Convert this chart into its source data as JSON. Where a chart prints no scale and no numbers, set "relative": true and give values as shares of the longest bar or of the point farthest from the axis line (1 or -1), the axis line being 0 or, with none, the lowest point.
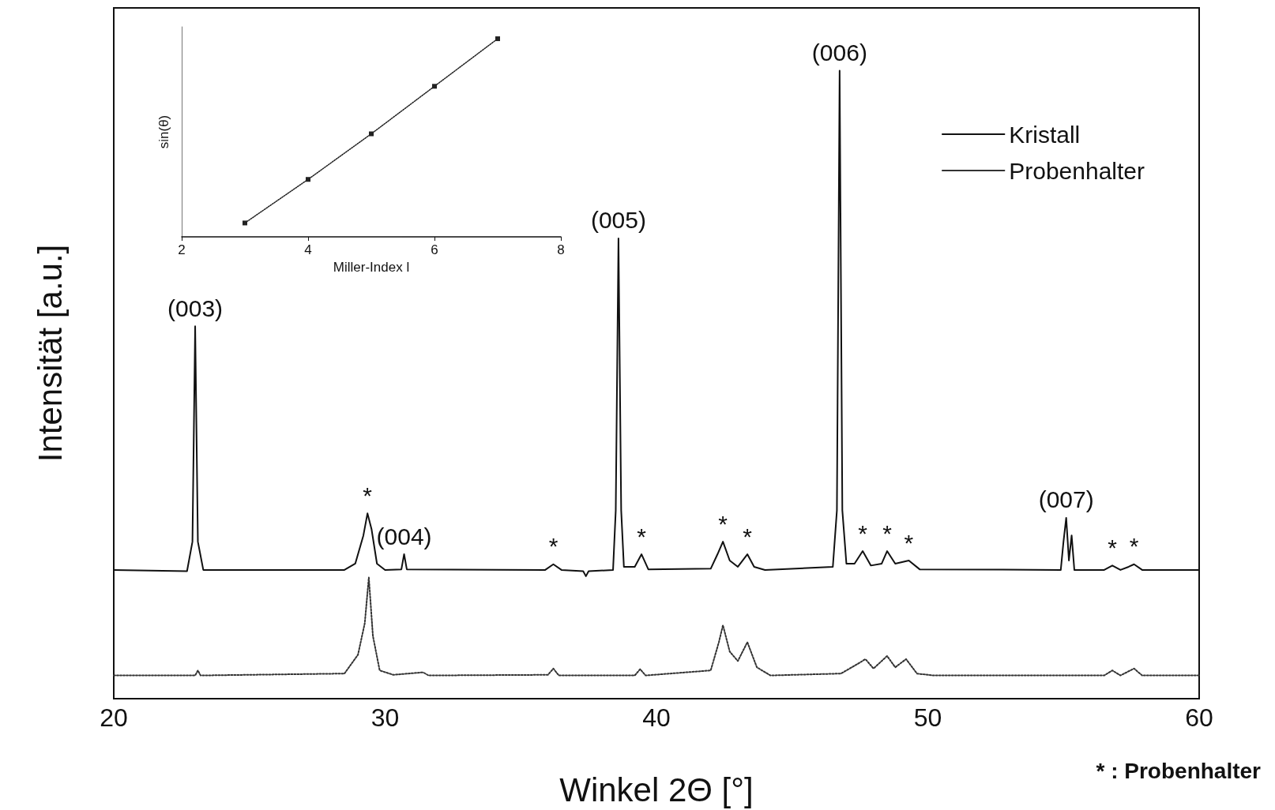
{
  "chart_data": [
    {
      "type": "line",
      "relative": true,
      "xlabel": "Winkel 2Θ [°]",
      "ylabel": "Intensität [a.u.]",
      "xlim": [
        20,
        60
      ],
      "xticks": [
        20,
        30,
        40,
        50,
        60
      ],
      "grid": false,
      "legend": "top right",
      "marker": "none",
      "series": [
        {
          "name": "Kristall",
          "color": "#111111",
          "line_style": "solid",
          "x": [
            20,
            22.7,
            22.9,
            23.0,
            23.1,
            23.3,
            28.5,
            28.9,
            29.2,
            29.35,
            29.5,
            29.7,
            30.0,
            30.6,
            30.7,
            30.8,
            35.9,
            36.2,
            36.5,
            37.3,
            37.4,
            37.5,
            38.4,
            38.5,
            38.6,
            38.7,
            38.8,
            39.2,
            39.45,
            39.7,
            42.0,
            42.25,
            42.45,
            42.7,
            43.0,
            43.35,
            43.6,
            44.0,
            46.5,
            46.65,
            46.75,
            46.85,
            47.0,
            47.3,
            47.6,
            47.9,
            48.3,
            48.5,
            48.8,
            49.3,
            49.7,
            54.9,
            55.0,
            55.1,
            55.2,
            55.3,
            55.4,
            56.5,
            56.8,
            57.1,
            57.4,
            57.6,
            57.9,
            60
          ],
          "values": [
            0.205,
            0.203,
            0.25,
            0.593,
            0.25,
            0.205,
            0.205,
            0.215,
            0.26,
            0.295,
            0.27,
            0.215,
            0.205,
            0.206,
            0.23,
            0.206,
            0.205,
            0.214,
            0.205,
            0.203,
            0.195,
            0.203,
            0.205,
            0.3,
            0.733,
            0.3,
            0.21,
            0.21,
            0.23,
            0.206,
            0.207,
            0.23,
            0.25,
            0.22,
            0.21,
            0.23,
            0.21,
            0.205,
            0.21,
            0.3,
            1,
            0.3,
            0.215,
            0.215,
            0.235,
            0.212,
            0.215,
            0.235,
            0.215,
            0.22,
            0.206,
            0.205,
            0.25,
            0.288,
            0.22,
            0.26,
            0.205,
            0.205,
            0.212,
            0.205,
            0.21,
            0.214,
            0.205,
            0.205
          ]
        },
        {
          "name": "Probenhalter",
          "color": "#333333",
          "line_style": "dotted",
          "x": [
            20,
            23.0,
            23.1,
            23.2,
            28.5,
            29.0,
            29.25,
            29.4,
            29.55,
            29.8,
            30.3,
            31.4,
            31.6,
            36.0,
            36.2,
            36.4,
            39.2,
            39.4,
            39.6,
            42.0,
            42.3,
            42.45,
            42.7,
            43.0,
            43.35,
            43.7,
            44.2,
            46.8,
            47.4,
            47.7,
            48.0,
            48.5,
            48.8,
            49.2,
            49.6,
            50.2,
            56.5,
            56.8,
            57.1,
            57.6,
            57.9,
            60
          ],
          "values": [
            0.037,
            0.037,
            0.045,
            0.037,
            0.04,
            0.07,
            0.12,
            0.193,
            0.1,
            0.045,
            0.038,
            0.042,
            0.037,
            0.038,
            0.048,
            0.037,
            0.037,
            0.047,
            0.037,
            0.045,
            0.09,
            0.117,
            0.075,
            0.06,
            0.09,
            0.05,
            0.037,
            0.04,
            0.055,
            0.063,
            0.048,
            0.068,
            0.05,
            0.063,
            0.04,
            0.037,
            0.037,
            0.045,
            0.037,
            0.048,
            0.037,
            0.037
          ]
        }
      ],
      "annotations": [
        {
          "text": "(003)",
          "x": 23.0,
          "y": 0.593
        },
        {
          "text": "(004)",
          "x": 30.7,
          "y": 0.23
        },
        {
          "text": "(005)",
          "x": 38.6,
          "y": 0.733
        },
        {
          "text": "(006)",
          "x": 46.75,
          "y": 1
        },
        {
          "text": "(007)",
          "x": 55.1,
          "y": 0.288
        },
        {
          "text": "*",
          "x": 29.35,
          "y": 0.295
        },
        {
          "text": "*",
          "x": 36.2,
          "y": 0.214
        },
        {
          "text": "*",
          "x": 39.45,
          "y": 0.23
        },
        {
          "text": "*",
          "x": 42.45,
          "y": 0.25
        },
        {
          "text": "*",
          "x": 43.35,
          "y": 0.23
        },
        {
          "text": "*",
          "x": 47.6,
          "y": 0.235
        },
        {
          "text": "*",
          "x": 48.5,
          "y": 0.235
        },
        {
          "text": "*",
          "x": 49.3,
          "y": 0.22
        },
        {
          "text": "*",
          "x": 56.8,
          "y": 0.212
        },
        {
          "text": "*",
          "x": 57.6,
          "y": 0.214
        },
        "* : Probenhalter"
      ]
    },
    {
      "type": "line",
      "relative": true,
      "xlabel": "Miller-Index l",
      "ylabel": "sin(θ)",
      "xlim": [
        2,
        8
      ],
      "xticks": [
        2,
        4,
        6,
        8
      ],
      "grid": false,
      "marker": "square",
      "line_style": "dotted",
      "series": [
        {
          "color": "#222222",
          "x": [
            3,
            4,
            5,
            6,
            7
          ],
          "values": [
            0.07,
            0.29,
            0.52,
            0.76,
            1
          ]
        }
      ]
    }
  ]
}
